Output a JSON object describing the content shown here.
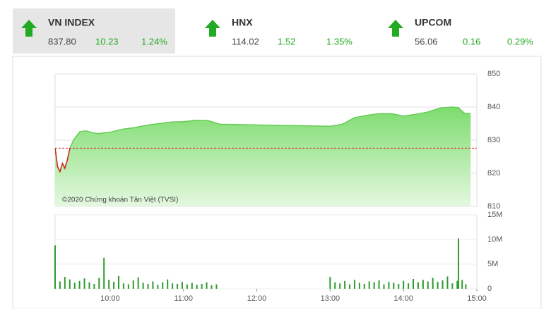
{
  "indices": [
    {
      "name": "VN INDEX",
      "value": "837.80",
      "change": "10.23",
      "percent": "1.24%"
    },
    {
      "name": "HNX",
      "value": "114.02",
      "change": "1.52",
      "percent": "1.35%"
    },
    {
      "name": "UPCOM",
      "value": "56.06",
      "change": "0.16",
      "percent": "0.29%"
    }
  ],
  "chart_data": [
    {
      "type": "area",
      "annotation": "©2020 Chứng khoán Tân Việt (TVSI)",
      "x": [
        "09:15",
        "09:17",
        "09:19",
        "09:21",
        "09:23",
        "09:25",
        "09:27",
        "09:30",
        "09:35",
        "09:40",
        "09:45",
        "09:50",
        "10:00",
        "10:10",
        "10:20",
        "10:30",
        "10:40",
        "10:50",
        "11:00",
        "11:10",
        "11:20",
        "11:30",
        "13:00",
        "13:10",
        "13:20",
        "13:30",
        "13:40",
        "13:50",
        "14:00",
        "14:10",
        "14:20",
        "14:30",
        "14:40",
        "14:45",
        "14:50",
        "14:55"
      ],
      "values": [
        827.6,
        822,
        820.5,
        823,
        821.5,
        824,
        827.5,
        830,
        832.5,
        832.8,
        832.3,
        832,
        832.4,
        833.3,
        833.8,
        834.5,
        835,
        835.5,
        835.6,
        836,
        835.9,
        834.8,
        834.2,
        834.8,
        836.8,
        837.5,
        838,
        838,
        837.3,
        837.8,
        838.5,
        839.7,
        840,
        839.8,
        838.1,
        838
      ],
      "color": "#66cc55",
      "below_color": "#d42020",
      "reference": 827.57,
      "xlim": [
        "09:15",
        "15:00"
      ],
      "ylim": [
        810,
        850
      ],
      "yticks": [
        810,
        820,
        830,
        840,
        850
      ],
      "grid": true
    },
    {
      "type": "bar",
      "color": "#2e9a2e",
      "x": [
        "09:15",
        "09:19",
        "09:23",
        "09:27",
        "09:31",
        "09:35",
        "09:39",
        "09:43",
        "09:47",
        "09:51",
        "09:55",
        "09:59",
        "10:03",
        "10:07",
        "10:11",
        "10:15",
        "10:19",
        "10:23",
        "10:27",
        "10:31",
        "10:35",
        "10:39",
        "10:43",
        "10:47",
        "10:51",
        "10:55",
        "10:59",
        "11:03",
        "11:07",
        "11:11",
        "11:15",
        "11:19",
        "11:23",
        "11:27",
        "13:00",
        "13:04",
        "13:08",
        "13:12",
        "13:16",
        "13:20",
        "13:24",
        "13:28",
        "13:32",
        "13:36",
        "13:40",
        "13:44",
        "13:48",
        "13:52",
        "13:56",
        "14:00",
        "14:04",
        "14:08",
        "14:12",
        "14:16",
        "14:20",
        "14:24",
        "14:28",
        "14:32",
        "14:36",
        "14:40",
        "14:44",
        "14:45",
        "14:48",
        "14:51"
      ],
      "values": [
        8800000,
        1500000,
        2400000,
        1900000,
        1200000,
        1600000,
        2100000,
        1300000,
        1000000,
        2200000,
        6300000,
        1800000,
        1400000,
        2600000,
        1100000,
        900000,
        1700000,
        2300000,
        1200000,
        1000000,
        1500000,
        800000,
        1300000,
        1900000,
        1100000,
        1000000,
        1400000,
        900000,
        1200000,
        800000,
        1000000,
        1300000,
        700000,
        900000,
        2400000,
        1300000,
        1100000,
        1600000,
        900000,
        1800000,
        1200000,
        1000000,
        1500000,
        1300000,
        1700000,
        900000,
        1400000,
        1200000,
        1000000,
        1600000,
        1100000,
        2000000,
        1300000,
        1800000,
        1500000,
        2200000,
        1400000,
        1700000,
        2500000,
        1100000,
        1600000,
        10200000,
        1800000,
        900000
      ],
      "xlim": [
        "09:15",
        "15:00"
      ],
      "xticks": [
        "10:00",
        "11:00",
        "12:00",
        "13:00",
        "14:00",
        "15:00"
      ],
      "ylim": [
        0,
        15000000
      ],
      "yticks": [
        0,
        {
          "value": 5000000,
          "label": "5M"
        },
        {
          "value": 10000000,
          "label": "10M"
        },
        {
          "value": 15000000,
          "label": "15M"
        }
      ],
      "grid": true
    }
  ]
}
